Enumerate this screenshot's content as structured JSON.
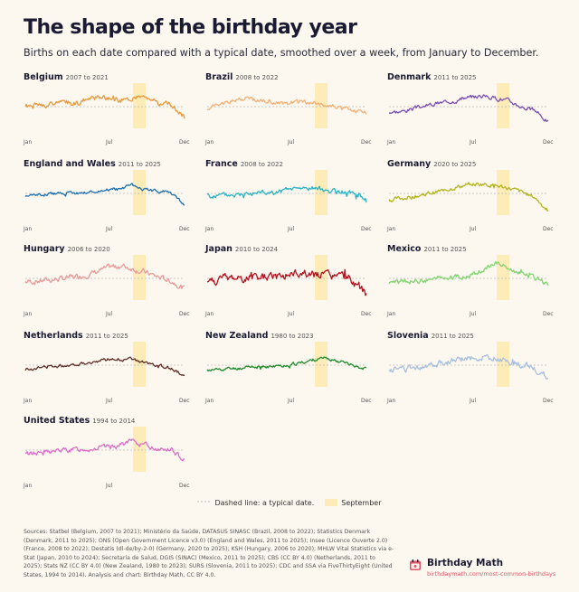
{
  "title": "The shape of the birthday year",
  "subtitle": "Births on each date compared with a typical date, smoothed over a week, from January to December.",
  "legend": {
    "dashed_label": "Dashed line: a typical date.",
    "highlight_label": "September"
  },
  "sources": "Sources: Statbel (Belgium, 2007 to 2021); Ministério da Saúde, DATASUS SINASC (Brazil, 2008 to 2022); Statistics Denmark (Denmark, 2011 to 2025); ONS (Open Government Licence v3.0) (England and Wales, 2011 to 2025); Insee (Licence Ouverte 2.0) (France, 2008 to 2022); Destatis (dl-de/by-2-0) (Germany, 2020 to 2025); KSH (Hungary, 2006 to 2020); MHLW Vital Statistics via e-Stat (Japan, 2010 to 2024); Secretaría de Salud, DGIS (SINAC) (Mexico, 2011 to 2025); CBS (CC BY 4.0) (Netherlands, 2011 to 2025); Stats NZ (CC BY 4.0) (New Zealand, 1980 to 2023); SURS (Slovenia, 2011 to 2025); CDC and SSA via FiveThirtyEight (United States, 1994 to 2014). Analysis and chart: Birthday Math, CC BY 4.0.",
  "brand": {
    "name": "Birthday Math",
    "url": "birthdaymath.com/most-common-birthdays"
  },
  "colors": {
    "background": "#fdf8ef",
    "september_band": "#fdebb8",
    "baseline": "#b9b9b9",
    "brand_url": "#e1556a"
  },
  "chart_data": [
    {
      "type": "line",
      "country": "Belgium",
      "years": "2007 to 2021",
      "color": "#e89a3c",
      "x_ticks": [
        "Jan",
        "Jul",
        "Dec"
      ],
      "shape": [
        0,
        0.2,
        0.4,
        0.5,
        0.6,
        1.2,
        1.4,
        1.0,
        1.3,
        1.5,
        0.5,
        0.2,
        -1.6
      ],
      "noise": 0.35,
      "seed": 1
    },
    {
      "type": "line",
      "country": "Brazil",
      "years": "2008 to 2022",
      "color": "#f2b077",
      "x_ticks": [
        "Jan",
        "Jul",
        "Dec"
      ],
      "shape": [
        -0.3,
        0.5,
        1.0,
        1.2,
        1.0,
        0.6,
        0.4,
        0.8,
        0.6,
        0.2,
        -0.2,
        -0.6,
        -0.9
      ],
      "noise": 0.25,
      "seed": 2
    },
    {
      "type": "line",
      "country": "Denmark",
      "years": "2011 to 2025",
      "color": "#7a4fb0",
      "x_ticks": [
        "Jan",
        "Jul",
        "Dec"
      ],
      "shape": [
        -0.8,
        -0.7,
        -0.2,
        0.2,
        0.6,
        0.9,
        1.4,
        1.6,
        1.3,
        0.9,
        0.0,
        -0.6,
        -2.2
      ],
      "noise": 0.25,
      "seed": 3
    },
    {
      "type": "line",
      "country": "England and Wales",
      "years": "2011 to 2025",
      "color": "#1e6fb0",
      "x_ticks": [
        "Jan",
        "Jul",
        "Dec"
      ],
      "shape": [
        -0.3,
        -0.2,
        0.0,
        0.1,
        0.0,
        0.2,
        0.5,
        0.6,
        1.2,
        0.6,
        0.3,
        0.2,
        -1.8
      ],
      "noise": 0.2,
      "seed": 4
    },
    {
      "type": "line",
      "country": "France",
      "years": "2008 to 2022",
      "color": "#2ab3c4",
      "x_ticks": [
        "Jan",
        "Jul",
        "Dec"
      ],
      "shape": [
        -0.4,
        -0.3,
        -0.2,
        0.0,
        0.2,
        0.1,
        0.6,
        0.7,
        0.8,
        0.4,
        0.2,
        0.0,
        -0.8
      ],
      "noise": 0.3,
      "seed": 5
    },
    {
      "type": "line",
      "country": "Germany",
      "years": "2020 to 2025",
      "color": "#b3b31e",
      "x_ticks": [
        "Jan",
        "Jul",
        "Dec"
      ],
      "shape": [
        -1.0,
        -0.7,
        -0.4,
        0.0,
        0.4,
        0.9,
        1.3,
        1.4,
        1.2,
        0.8,
        0.2,
        -0.6,
        -2.6
      ],
      "noise": 0.25,
      "seed": 6
    },
    {
      "type": "line",
      "country": "Hungary",
      "years": "2006 to 2020",
      "color": "#e89a9a",
      "x_ticks": [
        "Jan",
        "Jul",
        "Dec"
      ],
      "shape": [
        -0.5,
        -0.4,
        -0.2,
        0.0,
        0.3,
        0.7,
        1.4,
        1.9,
        1.5,
        0.9,
        0.2,
        -0.4,
        -1.5
      ],
      "noise": 0.35,
      "seed": 7
    },
    {
      "type": "line",
      "country": "Japan",
      "years": "2010 to 2024",
      "color": "#b3111e",
      "x_ticks": [
        "Jan",
        "Jul",
        "Dec"
      ],
      "shape": [
        -0.4,
        -0.1,
        0.1,
        0.2,
        0.0,
        0.3,
        0.5,
        0.7,
        0.6,
        0.4,
        0.2,
        0.0,
        -2.6
      ],
      "noise": 0.55,
      "seed": 8
    },
    {
      "type": "line",
      "country": "Mexico",
      "years": "2011 to 2025",
      "color": "#7fd46f",
      "x_ticks": [
        "Jan",
        "Jul",
        "Dec"
      ],
      "shape": [
        -0.6,
        -0.5,
        -0.4,
        -0.2,
        0.0,
        0.2,
        0.4,
        1.0,
        2.4,
        1.5,
        0.6,
        0.0,
        -0.9
      ],
      "noise": 0.3,
      "seed": 9
    },
    {
      "type": "line",
      "country": "Netherlands",
      "years": "2011 to 2025",
      "color": "#5e2e2a",
      "x_ticks": [
        "Jan",
        "Jul",
        "Dec"
      ],
      "shape": [
        -0.6,
        -0.4,
        -0.2,
        0.0,
        0.2,
        0.5,
        0.8,
        0.9,
        0.8,
        0.3,
        -0.1,
        -0.5,
        -1.6
      ],
      "noise": 0.2,
      "seed": 10
    },
    {
      "type": "line",
      "country": "New Zealand",
      "years": "1980 to 2023",
      "color": "#1e8c2e",
      "x_ticks": [
        "Jan",
        "Jul",
        "Dec"
      ],
      "shape": [
        -0.8,
        -0.6,
        -0.5,
        -0.4,
        -0.3,
        -0.2,
        0.0,
        0.3,
        0.8,
        1.0,
        0.6,
        0.0,
        -0.6
      ],
      "noise": 0.2,
      "seed": 11
    },
    {
      "type": "line",
      "country": "Slovenia",
      "years": "2011 to 2025",
      "color": "#a8bfe0",
      "x_ticks": [
        "Jan",
        "Jul",
        "Dec"
      ],
      "shape": [
        -0.9,
        -0.6,
        -0.3,
        0.0,
        0.3,
        0.6,
        1.0,
        1.2,
        1.0,
        0.5,
        0.1,
        -0.5,
        -1.9
      ],
      "noise": 0.4,
      "seed": 12
    },
    {
      "type": "line",
      "country": "United States",
      "years": "1994 to 2014",
      "color": "#d86fc8",
      "x_ticks": [
        "Jan",
        "Jul",
        "Dec"
      ],
      "shape": [
        -0.5,
        -0.4,
        -0.2,
        0.0,
        0.1,
        0.2,
        0.4,
        0.7,
        1.3,
        0.8,
        0.2,
        0.0,
        -1.6
      ],
      "noise": 0.3,
      "seed": 13
    }
  ]
}
